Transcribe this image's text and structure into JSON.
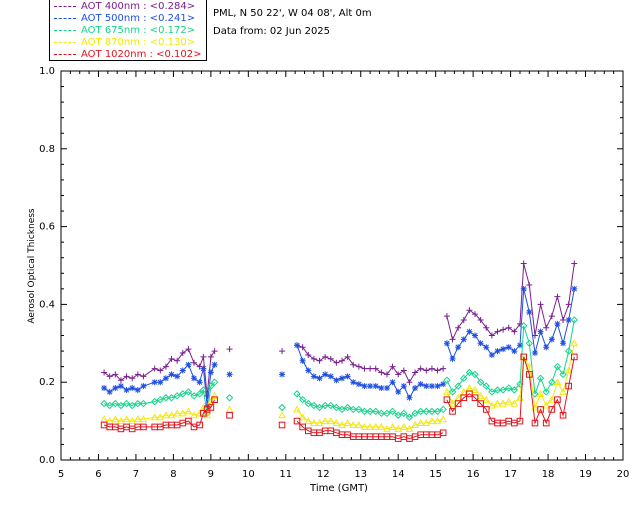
{
  "site": {
    "location_line": "PML, N 50 22', W 04 08', Alt 0m",
    "date_line": "Data from: 02 Jun 2025"
  },
  "legend": [
    {
      "label": "AOT  400nm : <0.284>",
      "color": "#7a1f8f"
    },
    {
      "label": "AOT  500nm : <0.241>",
      "color": "#1f4fe0"
    },
    {
      "label": "AOT  675nm : <0.172>",
      "color": "#14d48c"
    },
    {
      "label": "AOT  870nm : <0.130>",
      "color": "#f4e80a"
    },
    {
      "label": "AOT 1020nm : <0.102>",
      "color": "#e0141e"
    }
  ],
  "chart_data": {
    "type": "line",
    "xlabel": "Time (GMT)",
    "ylabel": "Aerosol Optical Thickness",
    "xlim": [
      5,
      20
    ],
    "ylim": [
      0.0,
      1.0
    ],
    "x_ticks": [
      "5",
      "6",
      "7",
      "8",
      "9",
      "10",
      "11",
      "12",
      "13",
      "14",
      "15",
      "16",
      "17",
      "18",
      "19",
      "20"
    ],
    "y_ticks": [
      "0.0",
      "0.2",
      "0.4",
      "0.6",
      "0.8",
      "1.0"
    ],
    "grid": false,
    "legend_position": "top-left-outside",
    "series": [
      {
        "name": "AOT  400nm : <0.284>",
        "color": "#7a1f8f",
        "marker": "plus",
        "segments": [
          {
            "x": [
              6.15,
              6.3,
              6.45,
              6.6,
              6.75,
              6.9,
              7.05,
              7.2,
              7.5,
              7.65,
              7.8,
              7.95,
              8.1,
              8.25,
              8.4,
              8.55,
              8.7,
              8.8,
              8.9,
              9.0,
              9.1
            ],
            "y": [
              0.225,
              0.215,
              0.22,
              0.205,
              0.215,
              0.21,
              0.22,
              0.215,
              0.235,
              0.23,
              0.24,
              0.26,
              0.255,
              0.275,
              0.285,
              0.25,
              0.24,
              0.265,
              0.165,
              0.265,
              0.28
            ]
          },
          {
            "x": [
              9.5
            ],
            "y": [
              0.285
            ]
          },
          {
            "x": [
              10.9
            ],
            "y": [
              0.28
            ]
          },
          {
            "x": [
              11.3,
              11.45,
              11.6,
              11.75,
              11.9,
              12.05,
              12.2,
              12.35,
              12.5,
              12.65,
              12.8,
              12.95,
              13.1,
              13.25,
              13.4,
              13.55,
              13.7,
              13.85,
              14.0,
              14.15,
              14.3,
              14.45,
              14.6,
              14.75,
              14.9,
              15.05,
              15.2
            ],
            "y": [
              0.295,
              0.29,
              0.27,
              0.26,
              0.255,
              0.265,
              0.26,
              0.25,
              0.255,
              0.265,
              0.245,
              0.24,
              0.235,
              0.235,
              0.235,
              0.225,
              0.22,
              0.24,
              0.22,
              0.23,
              0.2,
              0.225,
              0.235,
              0.23,
              0.235,
              0.23,
              0.235
            ]
          },
          {
            "x": [
              15.3,
              15.45,
              15.6,
              15.75,
              15.9,
              16.05,
              16.2,
              16.35,
              16.5,
              16.65,
              16.8,
              16.95,
              17.1,
              17.25,
              17.35,
              17.5,
              17.65,
              17.8,
              17.95,
              18.1,
              18.25,
              18.4,
              18.55,
              18.7
            ],
            "y": [
              0.37,
              0.31,
              0.34,
              0.36,
              0.385,
              0.375,
              0.36,
              0.34,
              0.32,
              0.33,
              0.335,
              0.34,
              0.33,
              0.35,
              0.505,
              0.45,
              0.32,
              0.4,
              0.34,
              0.37,
              0.42,
              0.36,
              0.4,
              0.505
            ]
          }
        ]
      },
      {
        "name": "AOT  500nm : <0.241>",
        "color": "#1f4fe0",
        "marker": "star",
        "segments": [
          {
            "x": [
              6.15,
              6.3,
              6.45,
              6.6,
              6.75,
              6.9,
              7.05,
              7.2,
              7.5,
              7.65,
              7.8,
              7.95,
              8.1,
              8.25,
              8.4,
              8.55,
              8.7,
              8.8,
              8.9,
              9.0,
              9.1
            ],
            "y": [
              0.185,
              0.175,
              0.185,
              0.19,
              0.18,
              0.185,
              0.18,
              0.19,
              0.2,
              0.2,
              0.21,
              0.22,
              0.215,
              0.23,
              0.245,
              0.21,
              0.2,
              0.235,
              0.14,
              0.225,
              0.245
            ]
          },
          {
            "x": [
              9.5
            ],
            "y": [
              0.22
            ]
          },
          {
            "x": [
              10.9
            ],
            "y": [
              0.22
            ]
          },
          {
            "x": [
              11.3,
              11.45,
              11.6,
              11.75,
              11.9,
              12.05,
              12.2,
              12.35,
              12.5,
              12.65,
              12.8,
              12.95,
              13.1,
              13.25,
              13.4,
              13.55,
              13.7,
              13.85,
              14.0,
              14.15,
              14.3,
              14.45,
              14.6,
              14.75,
              14.9,
              15.05,
              15.2
            ],
            "y": [
              0.295,
              0.255,
              0.23,
              0.215,
              0.21,
              0.22,
              0.215,
              0.205,
              0.21,
              0.215,
              0.2,
              0.195,
              0.19,
              0.19,
              0.19,
              0.185,
              0.185,
              0.2,
              0.175,
              0.19,
              0.16,
              0.185,
              0.195,
              0.19,
              0.19,
              0.19,
              0.195
            ]
          },
          {
            "x": [
              15.3,
              15.45,
              15.6,
              15.75,
              15.9,
              16.05,
              16.2,
              16.35,
              16.5,
              16.65,
              16.8,
              16.95,
              17.1,
              17.25,
              17.35,
              17.5,
              17.65,
              17.8,
              17.95,
              18.1,
              18.25,
              18.4,
              18.55,
              18.7
            ],
            "y": [
              0.3,
              0.26,
              0.29,
              0.31,
              0.33,
              0.32,
              0.3,
              0.29,
              0.27,
              0.28,
              0.285,
              0.29,
              0.28,
              0.295,
              0.44,
              0.38,
              0.275,
              0.33,
              0.29,
              0.31,
              0.35,
              0.3,
              0.36,
              0.44
            ]
          }
        ]
      },
      {
        "name": "AOT  675nm : <0.172>",
        "color": "#14d48c",
        "marker": "diamond",
        "segments": [
          {
            "x": [
              6.15,
              6.3,
              6.45,
              6.6,
              6.75,
              6.9,
              7.05,
              7.2,
              7.5,
              7.65,
              7.8,
              7.95,
              8.1,
              8.25,
              8.4,
              8.55,
              8.7,
              8.8,
              8.9,
              9.0,
              9.1
            ],
            "y": [
              0.145,
              0.14,
              0.145,
              0.14,
              0.145,
              0.14,
              0.145,
              0.145,
              0.15,
              0.155,
              0.16,
              0.16,
              0.165,
              0.17,
              0.175,
              0.165,
              0.17,
              0.18,
              0.12,
              0.19,
              0.2
            ]
          },
          {
            "x": [
              9.5
            ],
            "y": [
              0.16
            ]
          },
          {
            "x": [
              10.9
            ],
            "y": [
              0.135
            ]
          },
          {
            "x": [
              11.3,
              11.45,
              11.6,
              11.75,
              11.9,
              12.05,
              12.2,
              12.35,
              12.5,
              12.65,
              12.8,
              12.95,
              13.1,
              13.25,
              13.4,
              13.55,
              13.7,
              13.85,
              14.0,
              14.15,
              14.3,
              14.45,
              14.6,
              14.75,
              14.9,
              15.05,
              15.2
            ],
            "y": [
              0.17,
              0.155,
              0.145,
              0.14,
              0.135,
              0.14,
              0.14,
              0.135,
              0.13,
              0.135,
              0.13,
              0.13,
              0.125,
              0.125,
              0.125,
              0.12,
              0.12,
              0.125,
              0.115,
              0.12,
              0.11,
              0.12,
              0.125,
              0.125,
              0.125,
              0.125,
              0.13
            ]
          },
          {
            "x": [
              15.3,
              15.45,
              15.6,
              15.75,
              15.9,
              16.05,
              16.2,
              16.35,
              16.5,
              16.65,
              16.8,
              16.95,
              17.1,
              17.25,
              17.35,
              17.5,
              17.65,
              17.8,
              17.95,
              18.1,
              18.25,
              18.4,
              18.55,
              18.7
            ],
            "y": [
              0.205,
              0.175,
              0.19,
              0.21,
              0.225,
              0.22,
              0.2,
              0.19,
              0.175,
              0.18,
              0.18,
              0.185,
              0.18,
              0.195,
              0.345,
              0.3,
              0.17,
              0.21,
              0.175,
              0.2,
              0.24,
              0.22,
              0.28,
              0.36
            ]
          }
        ]
      },
      {
        "name": "AOT  870nm : <0.130>",
        "color": "#f4e80a",
        "marker": "triangle",
        "segments": [
          {
            "x": [
              6.15,
              6.3,
              6.45,
              6.6,
              6.75,
              6.9,
              7.05,
              7.2,
              7.5,
              7.65,
              7.8,
              7.95,
              8.1,
              8.25,
              8.4,
              8.55,
              8.7,
              8.8,
              8.9,
              9.0,
              9.1
            ],
            "y": [
              0.105,
              0.1,
              0.105,
              0.1,
              0.105,
              0.1,
              0.105,
              0.105,
              0.11,
              0.11,
              0.115,
              0.115,
              0.12,
              0.12,
              0.125,
              0.115,
              0.12,
              0.135,
              0.115,
              0.15,
              0.165
            ]
          },
          {
            "x": [
              9.5
            ],
            "y": [
              0.13
            ]
          },
          {
            "x": [
              10.9
            ],
            "y": [
              0.115
            ]
          },
          {
            "x": [
              11.3,
              11.45,
              11.6,
              11.75,
              11.9,
              12.05,
              12.2,
              12.35,
              12.5,
              12.65,
              12.8,
              12.95,
              13.1,
              13.25,
              13.4,
              13.55,
              13.7,
              13.85,
              14.0,
              14.15,
              14.3,
              14.45,
              14.6,
              14.75,
              14.9,
              15.05,
              15.2
            ],
            "y": [
              0.13,
              0.11,
              0.1,
              0.095,
              0.095,
              0.1,
              0.1,
              0.095,
              0.09,
              0.095,
              0.09,
              0.09,
              0.085,
              0.085,
              0.085,
              0.085,
              0.08,
              0.085,
              0.08,
              0.085,
              0.08,
              0.09,
              0.095,
              0.095,
              0.1,
              0.1,
              0.105
            ]
          },
          {
            "x": [
              15.3,
              15.45,
              15.6,
              15.75,
              15.9,
              16.05,
              16.2,
              16.35,
              16.5,
              16.65,
              16.8,
              16.95,
              17.1,
              17.25,
              17.35,
              17.5,
              17.65,
              17.8,
              17.95,
              18.1,
              18.25,
              18.4,
              18.55,
              18.7
            ],
            "y": [
              0.175,
              0.145,
              0.16,
              0.175,
              0.185,
              0.18,
              0.165,
              0.155,
              0.14,
              0.145,
              0.145,
              0.15,
              0.145,
              0.16,
              0.26,
              0.24,
              0.135,
              0.17,
              0.14,
              0.155,
              0.2,
              0.175,
              0.23,
              0.3
            ]
          }
        ]
      },
      {
        "name": "AOT 1020nm : <0.102>",
        "color": "#e0141e",
        "marker": "square",
        "segments": [
          {
            "x": [
              6.15,
              6.3,
              6.45,
              6.6,
              6.75,
              6.9,
              7.05,
              7.2,
              7.5,
              7.65,
              7.8,
              7.95,
              8.1,
              8.25,
              8.4,
              8.55,
              8.7,
              8.8,
              8.9,
              9.0,
              9.1
            ],
            "y": [
              0.09,
              0.085,
              0.085,
              0.08,
              0.085,
              0.08,
              0.085,
              0.085,
              0.085,
              0.085,
              0.09,
              0.09,
              0.09,
              0.095,
              0.1,
              0.085,
              0.09,
              0.12,
              0.13,
              0.135,
              0.155
            ]
          },
          {
            "x": [
              9.5
            ],
            "y": [
              0.115
            ]
          },
          {
            "x": [
              10.9
            ],
            "y": [
              0.09
            ]
          },
          {
            "x": [
              11.3,
              11.45,
              11.6,
              11.75,
              11.9,
              12.05,
              12.2,
              12.35,
              12.5,
              12.65,
              12.8,
              12.95,
              13.1,
              13.25,
              13.4,
              13.55,
              13.7,
              13.85,
              14.0,
              14.15,
              14.3,
              14.45,
              14.6,
              14.75,
              14.9,
              15.05,
              15.2
            ],
            "y": [
              0.1,
              0.085,
              0.075,
              0.07,
              0.07,
              0.075,
              0.075,
              0.07,
              0.065,
              0.065,
              0.06,
              0.06,
              0.06,
              0.06,
              0.06,
              0.06,
              0.06,
              0.06,
              0.055,
              0.06,
              0.055,
              0.06,
              0.065,
              0.065,
              0.065,
              0.065,
              0.07
            ]
          },
          {
            "x": [
              15.3,
              15.45,
              15.6,
              15.75,
              15.9,
              16.05,
              16.2,
              16.35,
              16.5,
              16.65,
              16.8,
              16.95,
              17.1,
              17.25,
              17.35,
              17.5,
              17.65,
              17.8,
              17.95,
              18.1,
              18.25,
              18.4,
              18.55,
              18.7
            ],
            "y": [
              0.155,
              0.125,
              0.145,
              0.16,
              0.17,
              0.16,
              0.145,
              0.13,
              0.1,
              0.095,
              0.095,
              0.1,
              0.095,
              0.1,
              0.265,
              0.22,
              0.095,
              0.13,
              0.095,
              0.13,
              0.155,
              0.115,
              0.19,
              0.265
            ]
          }
        ]
      }
    ]
  }
}
